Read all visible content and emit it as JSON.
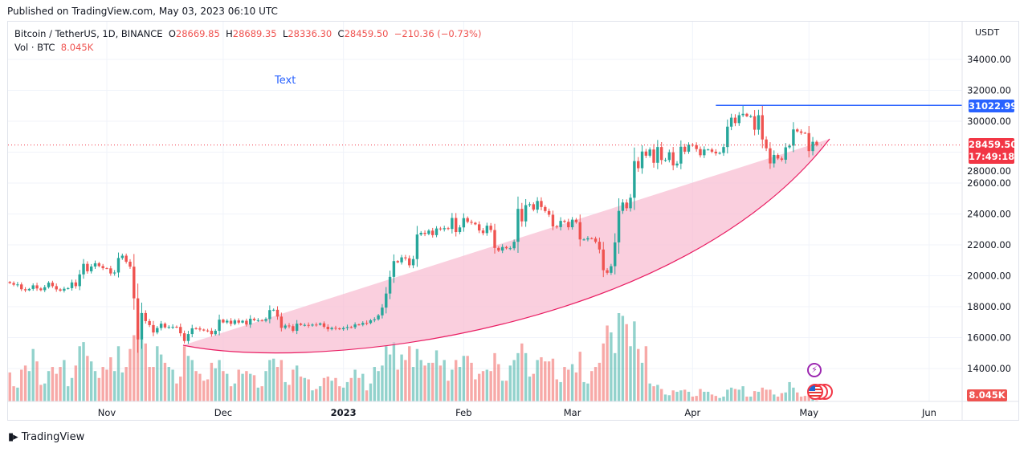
{
  "published": "Published on TradingView.com, May 03, 2023 06:10 UTC",
  "legend": {
    "symbol": "Bitcoin / TetherUS, 1D, BINANCE",
    "o_label": "O",
    "open": "28669.85",
    "h_label": "H",
    "high": "28689.35",
    "l_label": "L",
    "low": "28336.30",
    "c_label": "C",
    "close": "28459.50",
    "change": "−210.36 (−0.73%)",
    "vol_label": "Vol · BTC",
    "vol_value": "8.045K"
  },
  "drawing_text": "Text",
  "footer": {
    "brand": "TradingView"
  },
  "colors": {
    "up": "#26a69a",
    "down": "#ef5350",
    "hline": "#2962ff",
    "arc_fill": "#f8bbd0",
    "arc_stroke": "#e91e63",
    "text": "#2962ff"
  },
  "chart_data": {
    "type": "candlestick",
    "symbol": "BTCUSDT",
    "currency_label": "USDT",
    "ylim": [
      13000,
      35000
    ],
    "y_ticks": [
      "14000.00",
      "16000.00",
      "18000.00",
      "20000.00",
      "22000.00",
      "24000.00",
      "26000.00",
      "28000.00",
      "30000.00",
      "32000.00",
      "34000.00"
    ],
    "x_ticks": [
      {
        "label": "Nov",
        "date": "2022-11-01"
      },
      {
        "label": "Dec",
        "date": "2022-12-01"
      },
      {
        "label": "2023",
        "date": "2023-01-01"
      },
      {
        "label": "Feb",
        "date": "2023-02-01"
      },
      {
        "label": "Mar",
        "date": "2023-03-01"
      },
      {
        "label": "Apr",
        "date": "2023-04-01"
      },
      {
        "label": "May",
        "date": "2023-05-01"
      },
      {
        "label": "Jun",
        "date": "2023-06-01"
      }
    ],
    "last_price": "28459.50",
    "countdown": "17:49:18",
    "horizontal_line": {
      "value": "31022.99",
      "from_date": "2023-04-07"
    },
    "last_volume": "8.045K",
    "candles_columns": [
      "date",
      "close",
      "volume_k"
    ],
    "candles": [
      [
        "2022-10-07",
        19530,
        210
      ],
      [
        "2022-10-08",
        19420,
        110
      ],
      [
        "2022-10-09",
        19440,
        100
      ],
      [
        "2022-10-10",
        19130,
        230
      ],
      [
        "2022-10-11",
        19060,
        260
      ],
      [
        "2022-10-12",
        19150,
        220
      ],
      [
        "2022-10-13",
        19380,
        380
      ],
      [
        "2022-10-14",
        19180,
        290
      ],
      [
        "2022-10-15",
        19070,
        120
      ],
      [
        "2022-10-16",
        19260,
        130
      ],
      [
        "2022-10-17",
        19550,
        220
      ],
      [
        "2022-10-18",
        19330,
        250
      ],
      [
        "2022-10-19",
        19120,
        200
      ],
      [
        "2022-10-20",
        19040,
        250
      ],
      [
        "2022-10-21",
        19160,
        300
      ],
      [
        "2022-10-22",
        19200,
        110
      ],
      [
        "2022-10-23",
        19570,
        170
      ],
      [
        "2022-10-24",
        19330,
        260
      ],
      [
        "2022-10-25",
        20090,
        400
      ],
      [
        "2022-10-26",
        20770,
        430
      ],
      [
        "2022-10-27",
        20290,
        330
      ],
      [
        "2022-10-28",
        20600,
        290
      ],
      [
        "2022-10-29",
        20810,
        220
      ],
      [
        "2022-10-30",
        20630,
        170
      ],
      [
        "2022-10-31",
        20490,
        250
      ],
      [
        "2022-11-01",
        20480,
        230
      ],
      [
        "2022-11-02",
        20150,
        320
      ],
      [
        "2022-11-03",
        20210,
        220
      ],
      [
        "2022-11-04",
        21150,
        400
      ],
      [
        "2022-11-05",
        21300,
        210
      ],
      [
        "2022-11-06",
        20910,
        250
      ],
      [
        "2022-11-07",
        20590,
        380
      ],
      [
        "2022-11-08",
        18540,
        480
      ],
      [
        "2022-11-09",
        15880,
        520
      ],
      [
        "2022-11-10",
        17590,
        450
      ],
      [
        "2022-11-11",
        17070,
        420
      ],
      [
        "2022-11-12",
        16810,
        250
      ],
      [
        "2022-11-13",
        16330,
        250
      ],
      [
        "2022-11-14",
        16620,
        400
      ],
      [
        "2022-11-15",
        16900,
        340
      ],
      [
        "2022-11-16",
        16660,
        280
      ],
      [
        "2022-11-17",
        16690,
        250
      ],
      [
        "2022-11-18",
        16700,
        230
      ],
      [
        "2022-11-19",
        16690,
        130
      ],
      [
        "2022-11-20",
        16280,
        180
      ],
      [
        "2022-11-21",
        15780,
        400
      ],
      [
        "2022-11-22",
        16230,
        330
      ],
      [
        "2022-11-23",
        16600,
        300
      ],
      [
        "2022-11-24",
        16590,
        220
      ],
      [
        "2022-11-25",
        16520,
        200
      ],
      [
        "2022-11-26",
        16460,
        150
      ],
      [
        "2022-11-27",
        16440,
        160
      ],
      [
        "2022-11-28",
        16220,
        280
      ],
      [
        "2022-11-29",
        16440,
        240
      ],
      [
        "2022-11-30",
        17160,
        300
      ],
      [
        "2022-12-01",
        16980,
        220
      ],
      [
        "2022-12-02",
        17090,
        200
      ],
      [
        "2022-12-03",
        16890,
        110
      ],
      [
        "2022-12-04",
        17110,
        130
      ],
      [
        "2022-12-05",
        16970,
        230
      ],
      [
        "2022-12-06",
        17090,
        200
      ],
      [
        "2022-12-07",
        16840,
        220
      ],
      [
        "2022-12-08",
        17220,
        200
      ],
      [
        "2022-12-09",
        17130,
        190
      ],
      [
        "2022-12-10",
        17130,
        100
      ],
      [
        "2022-12-11",
        17090,
        110
      ],
      [
        "2022-12-12",
        17200,
        220
      ],
      [
        "2022-12-13",
        17780,
        300
      ],
      [
        "2022-12-14",
        17800,
        310
      ],
      [
        "2022-12-15",
        17360,
        250
      ],
      [
        "2022-12-16",
        16630,
        300
      ],
      [
        "2022-12-17",
        16780,
        140
      ],
      [
        "2022-12-18",
        16740,
        120
      ],
      [
        "2022-12-19",
        16440,
        230
      ],
      [
        "2022-12-20",
        16900,
        260
      ],
      [
        "2022-12-21",
        16820,
        180
      ],
      [
        "2022-12-22",
        16820,
        170
      ],
      [
        "2022-12-23",
        16780,
        160
      ],
      [
        "2022-12-24",
        16840,
        80
      ],
      [
        "2022-12-25",
        16830,
        90
      ],
      [
        "2022-12-26",
        16920,
        110
      ],
      [
        "2022-12-27",
        16700,
        170
      ],
      [
        "2022-12-28",
        16540,
        180
      ],
      [
        "2022-12-29",
        16630,
        150
      ],
      [
        "2022-12-30",
        16600,
        170
      ],
      [
        "2022-12-31",
        16540,
        110
      ],
      [
        "2023-01-01",
        16620,
        100
      ],
      [
        "2023-01-02",
        16680,
        140
      ],
      [
        "2023-01-03",
        16670,
        170
      ],
      [
        "2023-01-04",
        16850,
        230
      ],
      [
        "2023-01-05",
        16830,
        170
      ],
      [
        "2023-01-06",
        16950,
        200
      ],
      [
        "2023-01-07",
        16940,
        80
      ],
      [
        "2023-01-08",
        17120,
        130
      ],
      [
        "2023-01-09",
        17180,
        250
      ],
      [
        "2023-01-10",
        17440,
        220
      ],
      [
        "2023-01-11",
        17940,
        260
      ],
      [
        "2023-01-12",
        18850,
        400
      ],
      [
        "2023-01-13",
        19930,
        340
      ],
      [
        "2023-01-14",
        20950,
        430
      ],
      [
        "2023-01-15",
        20870,
        230
      ],
      [
        "2023-01-16",
        21190,
        340
      ],
      [
        "2023-01-17",
        21130,
        300
      ],
      [
        "2023-01-18",
        20680,
        400
      ],
      [
        "2023-01-19",
        21080,
        250
      ],
      [
        "2023-01-20",
        22670,
        380
      ],
      [
        "2023-01-21",
        22780,
        300
      ],
      [
        "2023-01-22",
        22710,
        260
      ],
      [
        "2023-01-23",
        22920,
        280
      ],
      [
        "2023-01-24",
        22630,
        280
      ],
      [
        "2023-01-25",
        23060,
        370
      ],
      [
        "2023-01-26",
        23010,
        260
      ],
      [
        "2023-01-27",
        23080,
        300
      ],
      [
        "2023-01-28",
        23030,
        150
      ],
      [
        "2023-01-29",
        23740,
        230
      ],
      [
        "2023-01-30",
        22830,
        300
      ],
      [
        "2023-01-31",
        23130,
        250
      ],
      [
        "2023-02-01",
        23730,
        330
      ],
      [
        "2023-02-02",
        23490,
        330
      ],
      [
        "2023-02-03",
        23430,
        280
      ],
      [
        "2023-02-04",
        23330,
        160
      ],
      [
        "2023-02-05",
        22930,
        200
      ],
      [
        "2023-02-06",
        22760,
        220
      ],
      [
        "2023-02-07",
        23240,
        230
      ],
      [
        "2023-02-08",
        22960,
        220
      ],
      [
        "2023-02-09",
        21800,
        350
      ],
      [
        "2023-02-10",
        21630,
        270
      ],
      [
        "2023-02-11",
        21860,
        150
      ],
      [
        "2023-02-12",
        21780,
        150
      ],
      [
        "2023-02-13",
        21780,
        260
      ],
      [
        "2023-02-14",
        22200,
        300
      ],
      [
        "2023-02-15",
        24330,
        350
      ],
      [
        "2023-02-16",
        23520,
        420
      ],
      [
        "2023-02-17",
        24570,
        350
      ],
      [
        "2023-02-18",
        24630,
        180
      ],
      [
        "2023-02-19",
        24280,
        200
      ],
      [
        "2023-02-20",
        24840,
        300
      ],
      [
        "2023-02-21",
        24450,
        320
      ],
      [
        "2023-02-22",
        24190,
        290
      ],
      [
        "2023-02-23",
        23950,
        290
      ],
      [
        "2023-02-24",
        23190,
        310
      ],
      [
        "2023-02-25",
        23150,
        160
      ],
      [
        "2023-02-26",
        23550,
        140
      ],
      [
        "2023-02-27",
        23490,
        250
      ],
      [
        "2023-02-28",
        23140,
        230
      ],
      [
        "2023-03-01",
        23630,
        270
      ],
      [
        "2023-03-02",
        23470,
        210
      ],
      [
        "2023-03-03",
        22350,
        360
      ],
      [
        "2023-03-04",
        22350,
        140
      ],
      [
        "2023-03-05",
        22430,
        130
      ],
      [
        "2023-03-06",
        22410,
        220
      ],
      [
        "2023-03-07",
        22200,
        250
      ],
      [
        "2023-03-08",
        21700,
        280
      ],
      [
        "2023-03-09",
        20360,
        420
      ],
      [
        "2023-03-10",
        20190,
        550
      ],
      [
        "2023-03-11",
        20620,
        500
      ],
      [
        "2023-03-12",
        22160,
        350
      ],
      [
        "2023-03-13",
        24200,
        640
      ],
      [
        "2023-03-14",
        24740,
        620
      ],
      [
        "2023-03-15",
        24370,
        560
      ],
      [
        "2023-03-16",
        25050,
        400
      ],
      [
        "2023-03-17",
        27420,
        580
      ],
      [
        "2023-03-18",
        26960,
        380
      ],
      [
        "2023-03-19",
        28040,
        280
      ],
      [
        "2023-03-20",
        27770,
        400
      ],
      [
        "2023-03-21",
        28170,
        130
      ],
      [
        "2023-03-22",
        27310,
        110
      ],
      [
        "2023-03-23",
        28330,
        120
      ],
      [
        "2023-03-24",
        27490,
        90
      ],
      [
        "2023-03-25",
        27490,
        50
      ],
      [
        "2023-03-26",
        27990,
        45
      ],
      [
        "2023-03-27",
        27140,
        80
      ],
      [
        "2023-03-28",
        27260,
        70
      ],
      [
        "2023-03-29",
        28350,
        80
      ],
      [
        "2023-03-30",
        28030,
        85
      ],
      [
        "2023-03-31",
        28480,
        70
      ],
      [
        "2023-04-01",
        28450,
        35
      ],
      [
        "2023-04-02",
        28200,
        40
      ],
      [
        "2023-04-03",
        27800,
        90
      ],
      [
        "2023-04-04",
        28170,
        70
      ],
      [
        "2023-04-05",
        28170,
        70
      ],
      [
        "2023-04-06",
        28030,
        50
      ],
      [
        "2023-04-07",
        27920,
        40
      ],
      [
        "2023-04-08",
        27950,
        25
      ],
      [
        "2023-04-09",
        28330,
        35
      ],
      [
        "2023-04-10",
        29650,
        85
      ],
      [
        "2023-04-11",
        30230,
        100
      ],
      [
        "2023-04-12",
        29880,
        90
      ],
      [
        "2023-04-13",
        30390,
        85
      ],
      [
        "2023-04-14",
        30480,
        110
      ],
      [
        "2023-04-15",
        30320,
        35
      ],
      [
        "2023-04-16",
        30320,
        35
      ],
      [
        "2023-04-17",
        29450,
        75
      ],
      [
        "2023-04-18",
        30390,
        70
      ],
      [
        "2023-04-19",
        28820,
        100
      ],
      [
        "2023-04-20",
        28250,
        85
      ],
      [
        "2023-04-21",
        27270,
        85
      ],
      [
        "2023-04-22",
        27820,
        50
      ],
      [
        "2023-04-23",
        27590,
        35
      ],
      [
        "2023-04-24",
        27510,
        60
      ],
      [
        "2023-04-25",
        28310,
        65
      ],
      [
        "2023-04-26",
        28420,
        140
      ],
      [
        "2023-04-27",
        29470,
        100
      ],
      [
        "2023-04-28",
        29340,
        65
      ],
      [
        "2023-04-29",
        29250,
        35
      ],
      [
        "2023-04-30",
        29230,
        40
      ],
      [
        "2023-05-01",
        28070,
        70
      ],
      [
        "2023-05-02",
        28670,
        65
      ],
      [
        "2023-05-03",
        28459.5,
        8.045
      ]
    ]
  }
}
